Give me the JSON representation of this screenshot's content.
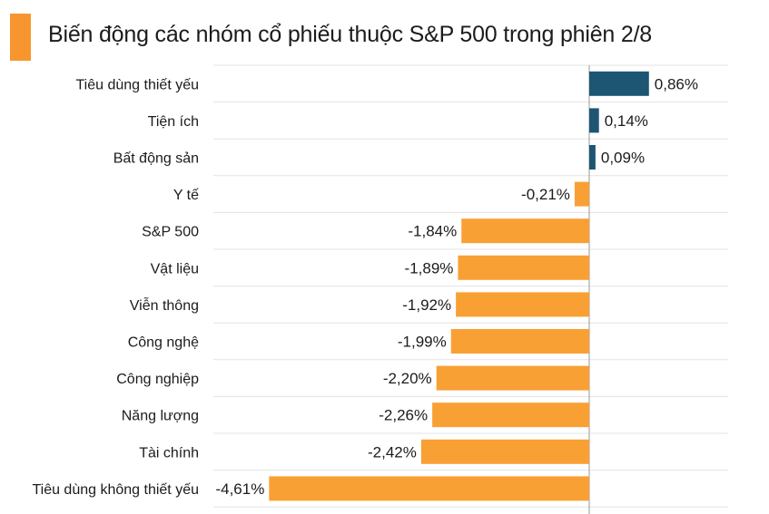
{
  "title": "Biến động các nhóm cổ phiếu thuộc S&P 500 trong phiên 2/8",
  "colors": {
    "accent": "#F7962F",
    "positive": "#1D5673",
    "negative": "#F9A035",
    "grid": "#e3e3e3",
    "axis": "#9a9a9a"
  },
  "chart_data": {
    "type": "bar",
    "orientation": "horizontal",
    "title": "Biến động các nhóm cổ phiếu thuộc S&P 500 trong phiên 2/8",
    "categories": [
      "Tiêu dùng thiết yếu",
      "Tiện ích",
      "Bất động sản",
      "Y tế",
      "S&P 500",
      "Vật liệu",
      "Viễn thông",
      "Công nghệ",
      "Công nghiệp",
      "Năng lượng",
      "Tài chính",
      "Tiêu dùng không thiết yếu"
    ],
    "values": [
      0.86,
      0.14,
      0.09,
      -0.21,
      -1.84,
      -1.89,
      -1.92,
      -1.99,
      -2.2,
      -2.26,
      -2.42,
      -4.61
    ],
    "value_labels": [
      "0,86%",
      "0,14%",
      "0,09%",
      "-0,21%",
      "-1,84%",
      "-1,89%",
      "-1,92%",
      "-1,99%",
      "-2,20%",
      "-2,26%",
      "-2,42%",
      "-4,61%"
    ],
    "unit": "%",
    "grid": true,
    "legend": "none"
  }
}
